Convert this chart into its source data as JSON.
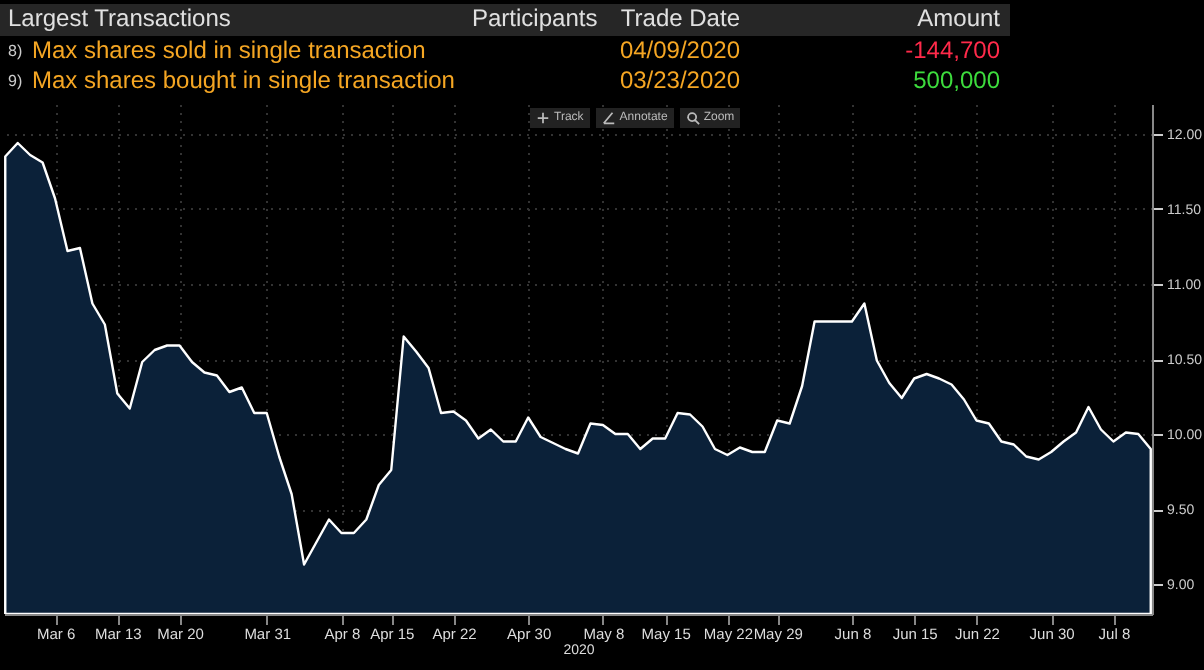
{
  "chart_data": {
    "type": "area",
    "xlabel": "2020",
    "categories": [
      null,
      null,
      null,
      null,
      "Mar 6",
      null,
      null,
      null,
      null,
      "Mar 13",
      null,
      null,
      null,
      null,
      "Mar 20",
      null,
      null,
      null,
      null,
      null,
      null,
      "Mar 31",
      null,
      null,
      null,
      null,
      null,
      "Apr 8",
      null,
      null,
      null,
      "Apr 15",
      null,
      null,
      null,
      null,
      "Apr 22",
      null,
      null,
      null,
      null,
      null,
      "Apr 30",
      null,
      null,
      null,
      null,
      null,
      "May 8",
      null,
      null,
      null,
      null,
      "May 15",
      null,
      null,
      null,
      null,
      "May 22",
      null,
      null,
      null,
      "May 29",
      null,
      null,
      null,
      null,
      null,
      "Jun 8",
      null,
      null,
      null,
      null,
      "Jun 15",
      null,
      null,
      null,
      null,
      "Jun 22",
      null,
      null,
      null,
      null,
      null,
      "Jun 30",
      null,
      null,
      null,
      null,
      "Jul 8",
      null,
      null,
      null
    ],
    "series": [
      {
        "color": "#ffffff",
        "values": [
          11.85,
          11.94,
          11.86,
          11.81,
          11.57,
          11.22,
          11.24,
          10.87,
          10.73,
          10.27,
          10.17,
          10.48,
          10.56,
          10.59,
          10.59,
          10.48,
          10.41,
          10.39,
          10.28,
          10.31,
          10.14,
          10.14,
          9.85,
          9.6,
          9.13,
          9.28,
          9.43,
          9.34,
          9.34,
          9.43,
          9.66,
          9.76,
          10.65,
          10.55,
          10.44,
          10.14,
          10.15,
          10.09,
          9.97,
          10.03,
          9.95,
          9.95,
          10.11,
          9.98,
          9.94,
          9.9,
          9.87,
          10.07,
          10.06,
          10.0,
          10.0,
          9.9,
          9.97,
          9.97,
          10.14,
          10.13,
          10.05,
          9.9,
          9.86,
          9.91,
          9.88,
          9.88,
          10.09,
          10.07,
          10.32,
          10.75,
          10.75,
          10.75,
          10.75,
          10.87,
          10.49,
          10.34,
          10.24,
          10.37,
          10.4,
          10.37,
          10.33,
          10.23,
          10.09,
          10.07,
          9.95,
          9.93,
          9.85,
          9.83,
          9.88,
          9.95,
          10.01,
          10.18,
          10.03,
          9.95,
          10.01,
          10.0,
          9.9
        ]
      }
    ],
    "ylim": [
      8.8,
      12.2
    ],
    "yticks": [
      {
        "value": 9,
        "label": "9.00"
      },
      {
        "value": 9.5,
        "label": "9.50"
      },
      {
        "value": 10,
        "label": "10.00"
      },
      {
        "value": 10.5,
        "label": "10.50"
      },
      {
        "value": 11,
        "label": "11.00"
      },
      {
        "value": 11.5,
        "label": "11.50"
      },
      {
        "value": 12,
        "label": "12.00"
      }
    ],
    "grid": true,
    "annotations": [
      "Largest Transactions",
      "Participants",
      "Trade Date",
      "Amount",
      "8)",
      "Max shares sold in single transaction",
      "04/09/2020",
      "-144,700",
      "9)",
      "Max shares bought in single transaction",
      "03/23/2020",
      "500,000",
      "Track",
      "Annotate",
      "Zoom"
    ]
  }
}
